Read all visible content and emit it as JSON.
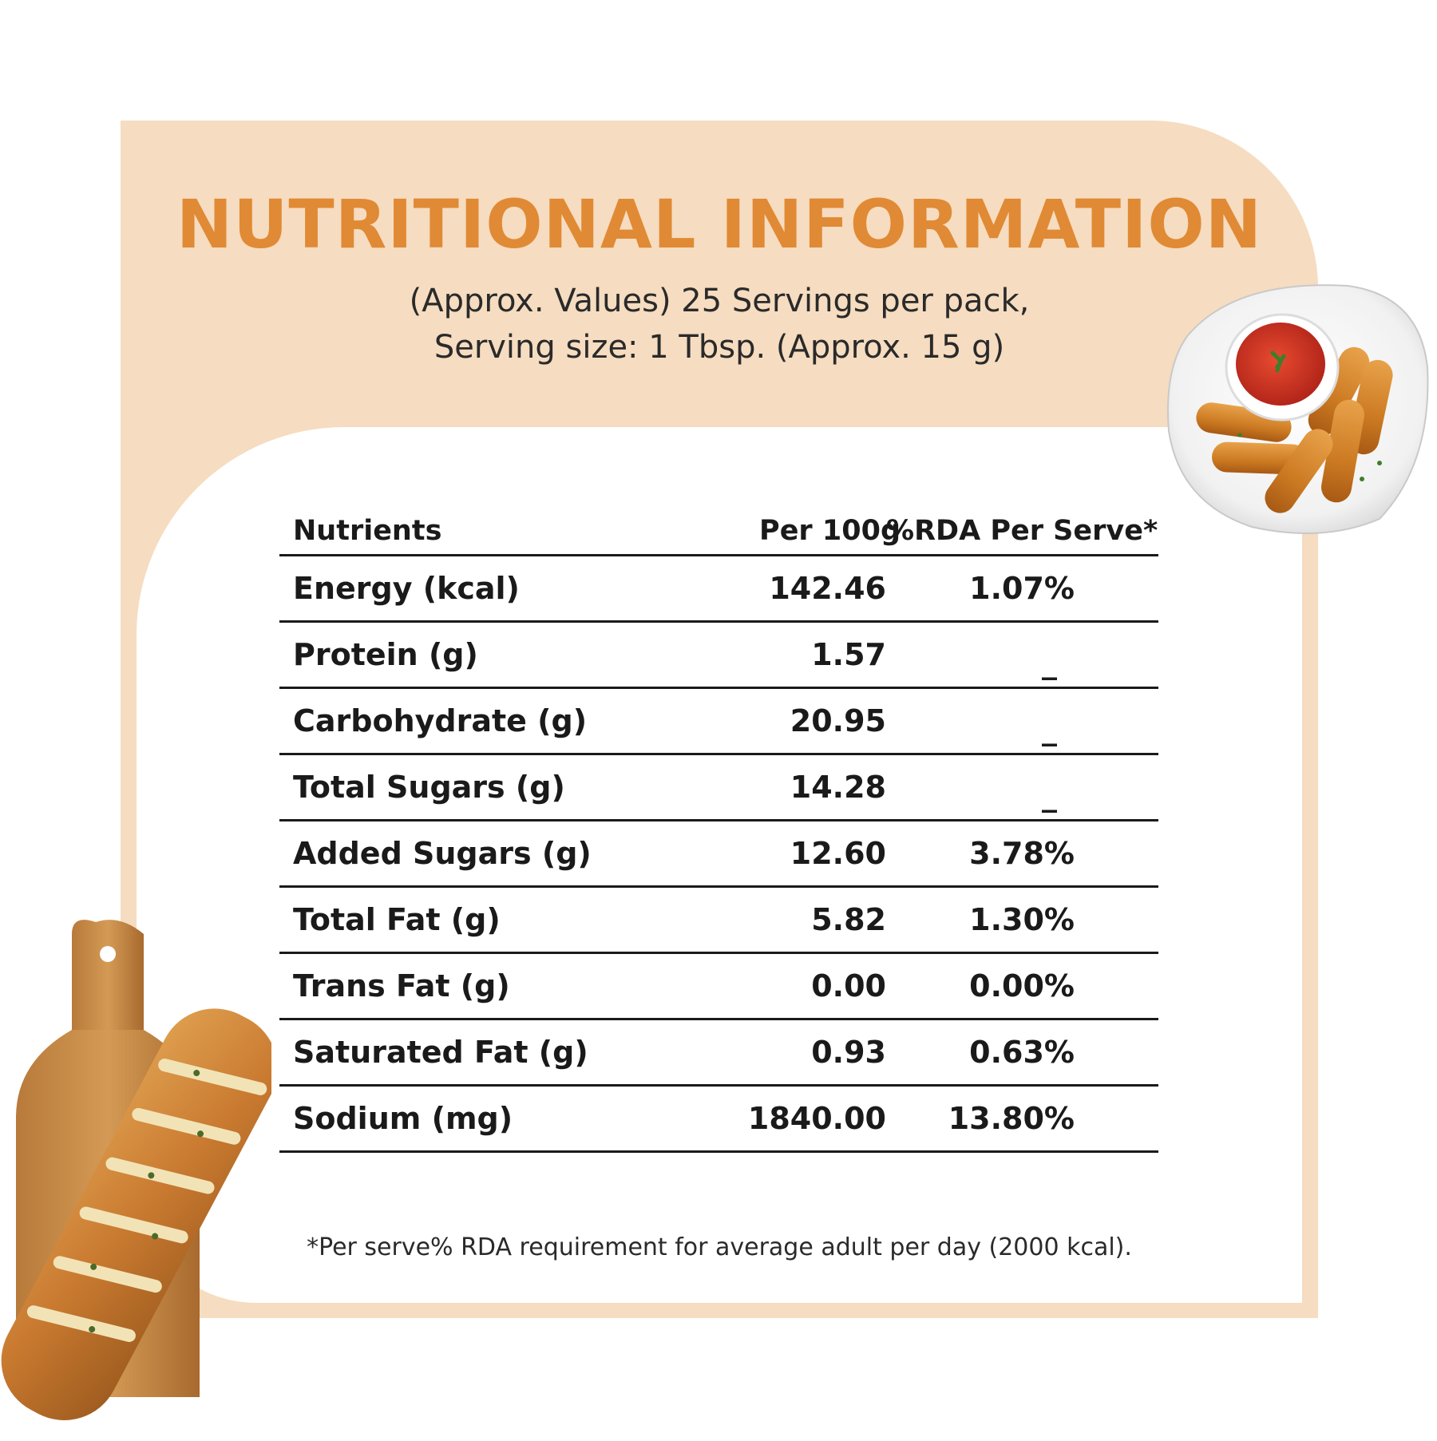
{
  "header": {
    "title": "NUTRITIONAL INFORMATION",
    "subtitle_line1": "(Approx. Values) 25 Servings per pack,",
    "subtitle_line2": "Serving size: 1 Tbsp. (Approx. 15 g)"
  },
  "table": {
    "headers": [
      "Nutrients",
      "Per 100g",
      "%RDA Per Serve*"
    ],
    "rows": [
      {
        "name": "Energy (kcal)",
        "per100g": "142.46",
        "rda": "1.07%"
      },
      {
        "name": "Protein (g)",
        "per100g": "1.57",
        "rda": "_"
      },
      {
        "name": "Carbohydrate (g)",
        "per100g": "20.95",
        "rda": "_"
      },
      {
        "name": "Total Sugars (g)",
        "per100g": "14.28",
        "rda": "_"
      },
      {
        "name": "Added Sugars (g)",
        "per100g": "12.60",
        "rda": "3.78%"
      },
      {
        "name": "Total Fat (g)",
        "per100g": "5.82",
        "rda": "1.30%"
      },
      {
        "name": "Trans Fat (g)",
        "per100g": "0.00",
        "rda": "0.00%"
      },
      {
        "name": "Saturated Fat (g)",
        "per100g": "0.93",
        "rda": "0.63%"
      },
      {
        "name": "Sodium (mg)",
        "per100g": "1840.00",
        "rda": "13.80%"
      }
    ]
  },
  "footnote": "*Per serve% RDA requirement for average adult per day (2000 kcal).",
  "colors": {
    "accent": "#e08a35",
    "panel": "#f6dcc0",
    "text": "#1a1a1a"
  },
  "images": {
    "plate": "plate-of-fried-sticks-with-sauce",
    "bread": "garlic-bread-on-cutting-board"
  }
}
